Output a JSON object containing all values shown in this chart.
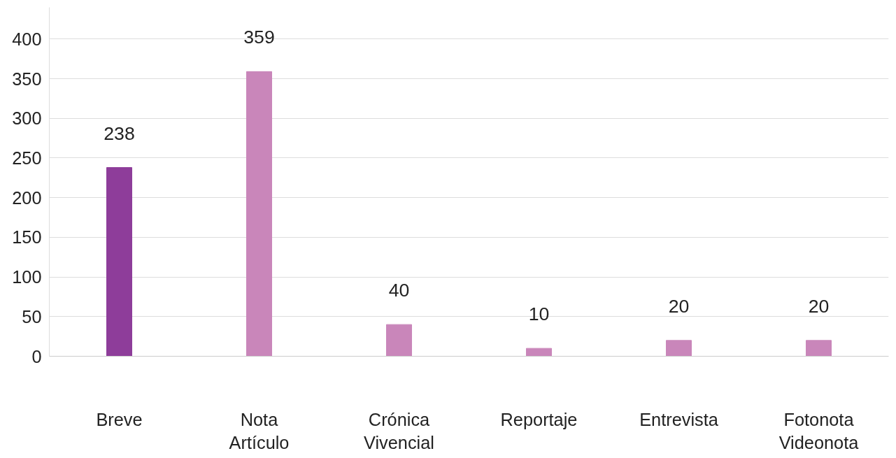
{
  "chart_data": {
    "type": "bar",
    "categories": [
      "Breve",
      "Nota\nArtículo",
      "Crónica\nVivencial",
      "Reportaje",
      "Entrevista",
      "Fotonota\nVideonota"
    ],
    "values": [
      238,
      359,
      40,
      10,
      20,
      20
    ],
    "colors": [
      "#8e3d9a",
      "#c986ba",
      "#c986ba",
      "#c986ba",
      "#c986ba",
      "#c986ba"
    ],
    "ylim": [
      0,
      440
    ],
    "yticks": [
      0,
      50,
      100,
      150,
      200,
      250,
      300,
      350,
      400
    ],
    "grid": "y",
    "data_labels": true
  }
}
